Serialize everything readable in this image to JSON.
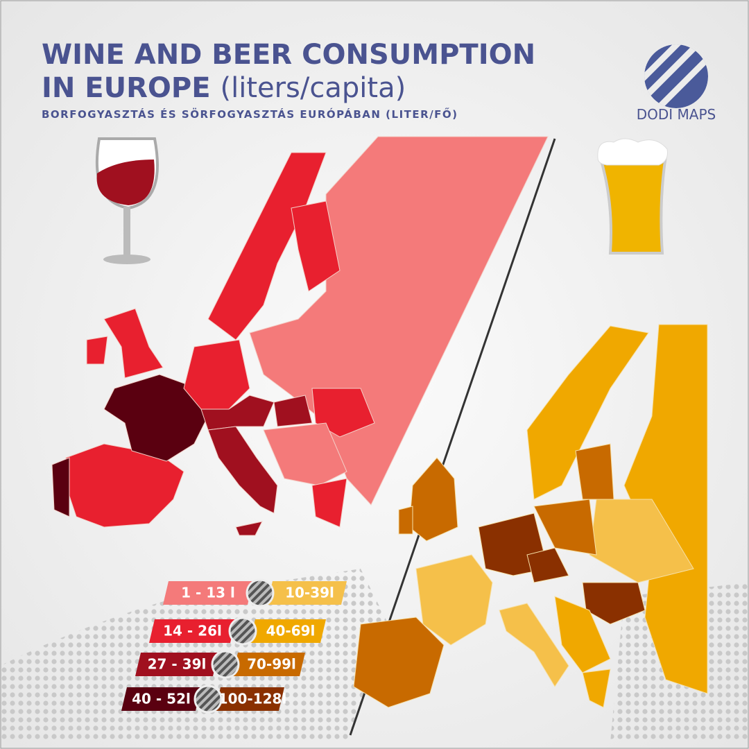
{
  "header": {
    "title_line1": "WINE AND BEER CONSUMPTION",
    "title_line2": "IN EUROPE",
    "title_unit": "(liters/capita)",
    "subtitle": "BORFOGYASZTÁS ÉS SÖRFOGYASZTÁS EURÓPÁBAN (LITER/FŐ)",
    "brand": "DODI MAPS"
  },
  "legend": {
    "wine": [
      {
        "label": "1 - 13 l",
        "color": "#f47a7a"
      },
      {
        "label": "14 - 26l",
        "color": "#e8202f"
      },
      {
        "label": "27 - 39l",
        "color": "#a0101f"
      },
      {
        "label": "40 - 52l",
        "color": "#5a0010"
      }
    ],
    "beer": [
      {
        "label": "10-39l",
        "color": "#f5c04a"
      },
      {
        "label": "40-69l",
        "color": "#f0a800"
      },
      {
        "label": "70-99l",
        "color": "#c86a00"
      },
      {
        "label": "100-128l",
        "color": "#8a3000"
      }
    ]
  }
}
